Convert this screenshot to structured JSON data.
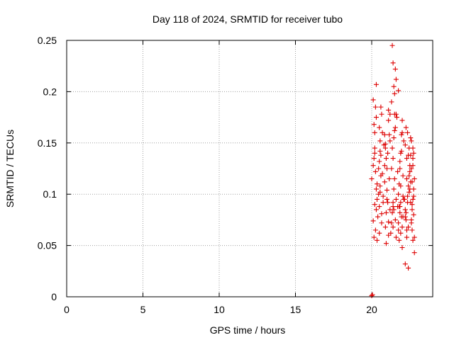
{
  "chart_data": {
    "type": "scatter",
    "title": "Day 118 of 2024, SRMTID for receiver tubo",
    "xlabel": "GPS time / hours",
    "ylabel": "SRMTID / TECUs",
    "xlim": [
      0,
      24
    ],
    "ylim": [
      0,
      0.25
    ],
    "xticks": [
      0,
      5,
      10,
      15,
      20
    ],
    "xtick_labels": [
      "0",
      "5",
      "10",
      "15",
      "20"
    ],
    "yticks": [
      0,
      0.05,
      0.1,
      0.15,
      0.2,
      0.25
    ],
    "ytick_labels": [
      "0",
      "0.05",
      "0.1",
      "0.15",
      "0.2",
      "0.25"
    ],
    "grid": true,
    "marker": "+",
    "series": [
      {
        "name": "SRMTID",
        "color": "#dd0000",
        "x": [
          20.0,
          20.05,
          20.1,
          20.15,
          20.2,
          20.0,
          20.1,
          20.2,
          20.3,
          20.15,
          20.25,
          20.35,
          20.2,
          20.3,
          20.1,
          20.25,
          20.15,
          20.3,
          20.2,
          20.35,
          20.25,
          20.3,
          20.4,
          20.35,
          20.45,
          20.5,
          20.55,
          20.6,
          20.5,
          20.65,
          20.55,
          20.45,
          20.6,
          20.7,
          20.5,
          20.65,
          20.75,
          20.55,
          20.6,
          20.7,
          20.8,
          20.5,
          20.65,
          20.75,
          20.55,
          20.85,
          20.9,
          20.95,
          21.0,
          20.85,
          21.05,
          20.95,
          21.1,
          20.9,
          21.0,
          21.15,
          20.85,
          21.05,
          21.1,
          20.95,
          21.0,
          21.2,
          20.9,
          21.1,
          21.15,
          21.25,
          21.3,
          21.35,
          21.4,
          21.45,
          21.5,
          21.3,
          21.4,
          21.35,
          21.45,
          21.55,
          21.5,
          21.6,
          21.3,
          21.45,
          21.55,
          21.4,
          21.6,
          21.35,
          21.5,
          21.65,
          21.4,
          21.55,
          21.45,
          21.6,
          21.7,
          21.75,
          21.8,
          21.85,
          21.9,
          21.95,
          22.0,
          21.75,
          21.85,
          21.9,
          22.05,
          21.8,
          21.95,
          22.0,
          21.75,
          21.9,
          22.05,
          21.85,
          21.95,
          22.1,
          21.8,
          22.0,
          21.9,
          22.05,
          21.85,
          22.15,
          22.2,
          22.25,
          22.3,
          22.35,
          22.4,
          22.45,
          22.5,
          22.55,
          22.2,
          22.3,
          22.4,
          22.5,
          22.25,
          22.35,
          22.45,
          22.55,
          22.2,
          22.4,
          22.5,
          22.3,
          22.45,
          22.55,
          22.35,
          22.25,
          22.6,
          22.65,
          22.7,
          22.75,
          22.8,
          22.6,
          22.7,
          22.75,
          22.65,
          22.8,
          22.7,
          22.6,
          22.75,
          22.65,
          22.7,
          22.8,
          22.6,
          22.75,
          22.65,
          22.7,
          21.6,
          21.1,
          21.5,
          22.0,
          21.7,
          21.2,
          22.2,
          21.4,
          22.1,
          22.4,
          22.3,
          21.75,
          21.2,
          22.55
        ],
        "y": [
          0.001,
          0.002,
          0.074,
          0.058,
          0.09,
          0.115,
          0.128,
          0.14,
          0.105,
          0.135,
          0.122,
          0.095,
          0.16,
          0.175,
          0.192,
          0.185,
          0.168,
          0.207,
          0.145,
          0.11,
          0.065,
          0.085,
          0.078,
          0.055,
          0.1,
          0.132,
          0.142,
          0.118,
          0.165,
          0.178,
          0.152,
          0.125,
          0.185,
          0.16,
          0.088,
          0.072,
          0.098,
          0.108,
          0.138,
          0.12,
          0.148,
          0.062,
          0.081,
          0.092,
          0.102,
          0.158,
          0.145,
          0.135,
          0.125,
          0.112,
          0.092,
          0.082,
          0.073,
          0.068,
          0.104,
          0.115,
          0.128,
          0.14,
          0.06,
          0.052,
          0.095,
          0.085,
          0.149,
          0.172,
          0.158,
          0.062,
          0.072,
          0.082,
          0.092,
          0.105,
          0.115,
          0.125,
          0.135,
          0.145,
          0.155,
          0.165,
          0.178,
          0.058,
          0.19,
          0.205,
          0.222,
          0.228,
          0.212,
          0.245,
          0.198,
          0.175,
          0.068,
          0.075,
          0.085,
          0.095,
          0.088,
          0.065,
          0.11,
          0.125,
          0.14,
          0.158,
          0.16,
          0.072,
          0.082,
          0.092,
          0.098,
          0.088,
          0.078,
          0.068,
          0.1,
          0.108,
          0.118,
          0.132,
          0.142,
          0.152,
          0.055,
          0.048,
          0.062,
          0.078,
          0.088,
          0.095,
          0.085,
          0.075,
          0.065,
          0.098,
          0.108,
          0.118,
          0.128,
          0.138,
          0.148,
          0.058,
          0.068,
          0.105,
          0.082,
          0.092,
          0.102,
          0.112,
          0.032,
          0.028,
          0.122,
          0.135,
          0.145,
          0.155,
          0.16,
          0.165,
          0.075,
          0.085,
          0.095,
          0.105,
          0.115,
          0.125,
          0.135,
          0.14,
          0.065,
          0.058,
          0.145,
          0.072,
          0.08,
          0.09,
          0.055,
          0.043,
          0.152,
          0.098,
          0.112,
          0.128,
          0.178,
          0.182,
          0.162,
          0.172,
          0.122,
          0.152,
          0.078,
          0.088,
          0.095,
          0.138,
          0.115,
          0.201,
          0.178,
          0.092
        ]
      }
    ]
  }
}
